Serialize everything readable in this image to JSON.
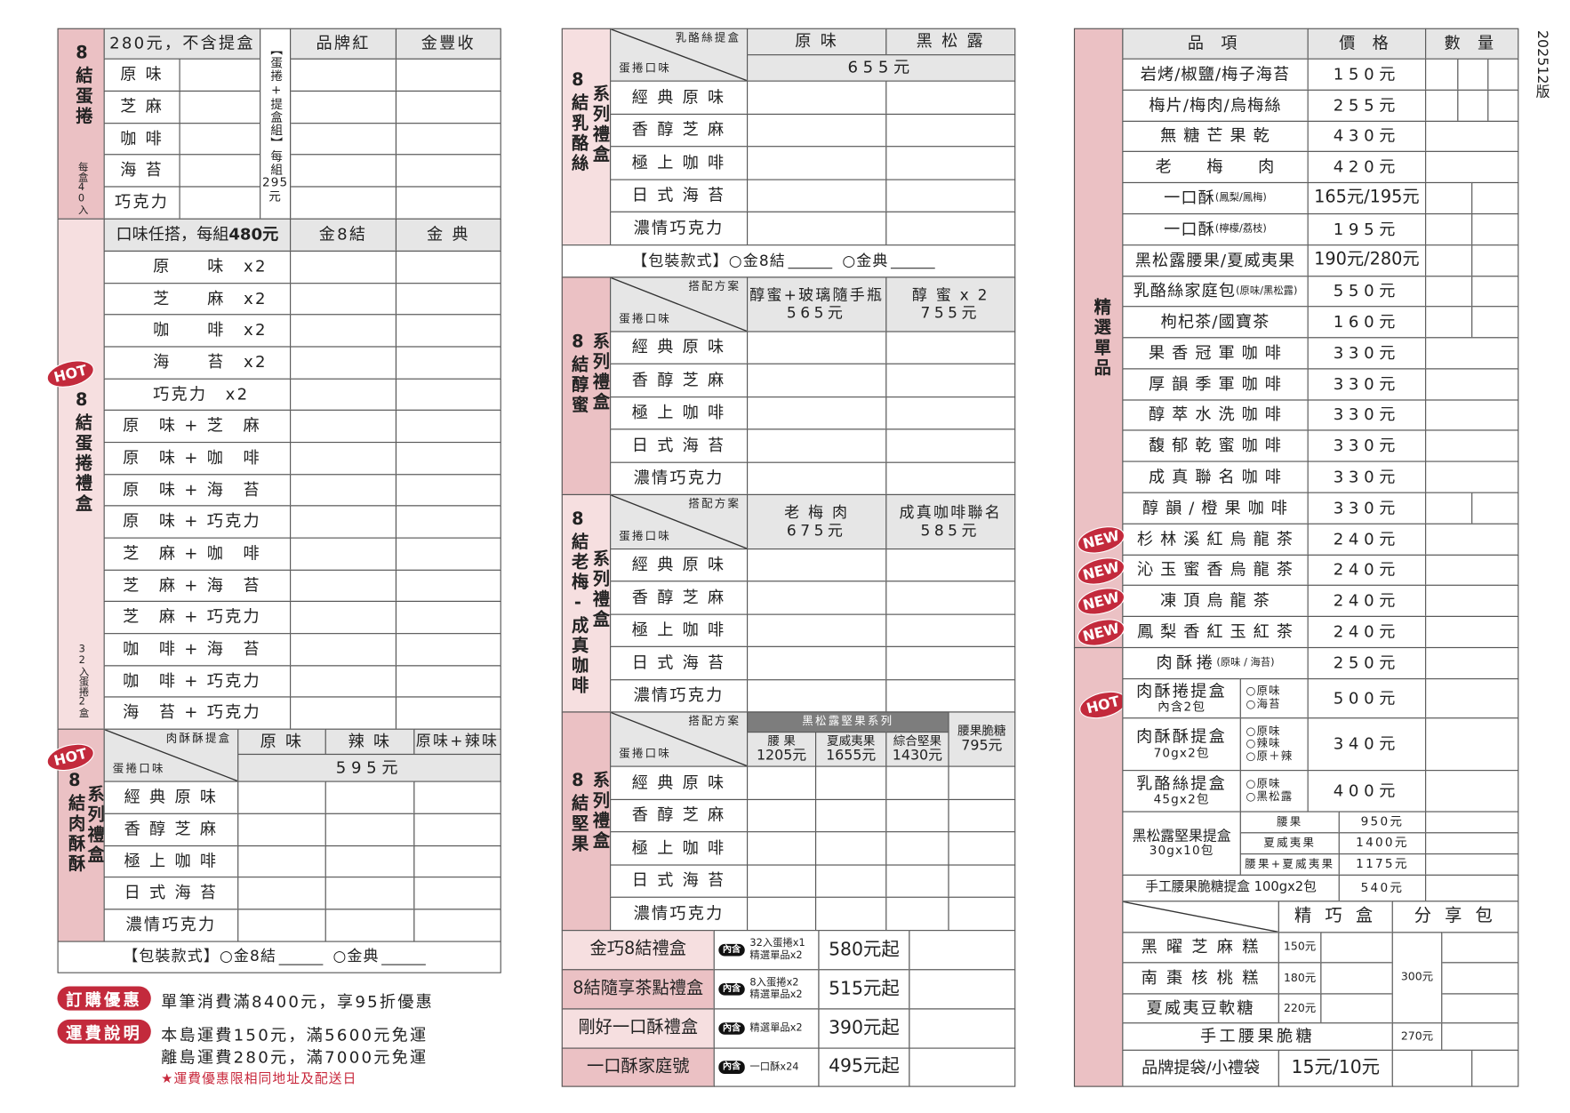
{
  "version": "202512版",
  "colors": {
    "pink_dark": "#ebc1c4",
    "pink_light": "#f6dfe0",
    "header_gray": "#e6e6e6",
    "series_gray": "#7d7d7d",
    "badge_red": "#c32a3c",
    "note_red": "#c8283c"
  },
  "gift_flavors": [
    "經 典 原 味",
    "香 醇 芝 麻",
    "極 上 咖 啡",
    "日 式 海 苔",
    "濃情巧克力"
  ],
  "eggroll": {
    "title": "8結蛋捲",
    "count": "每盒40入",
    "price_note": "280元，不含提盒",
    "flavors": [
      "原 味",
      "芝 麻",
      "咖 啡",
      "海 苔",
      "巧克力"
    ],
    "set_label": "【蛋捲+提盒組】",
    "set_price_prefix": "每組",
    "set_price": "295",
    "set_price_unit": "元",
    "columns": [
      "品牌紅",
      "金豐收"
    ]
  },
  "eggroll_gift": {
    "badge": "HOT",
    "title": "8結蛋捲禮盒",
    "count": "32入蛋捲2盒",
    "header_prefix": "口味任搭，每組",
    "header_price": "480元",
    "columns": [
      "金8結",
      "金 典"
    ],
    "combos": [
      "原　　味　x2",
      "芝　　麻　x2",
      "咖　　啡　x2",
      "海　　苔　x2",
      "巧克力　x2",
      "原　味 + 芝　麻",
      "原　味 + 咖　啡",
      "原　味 + 海　苔",
      "原　味 + 巧克力",
      "芝　麻 + 咖　啡",
      "芝　麻 + 海　苔",
      "芝　麻 + 巧克力",
      "咖　啡 + 海　苔",
      "咖　啡 + 巧克力",
      "海　苔 + 巧克力"
    ]
  },
  "meat_gift": {
    "badge": "HOT",
    "title": "8結肉酥酥",
    "series": "系列禮盒",
    "corner_top": "肉酥酥提盒",
    "corner_bottom": "蛋捲口味",
    "columns": [
      "原 味",
      "辣 味",
      "原味+辣味"
    ],
    "price": "595元"
  },
  "packaging": {
    "label": "【包裝款式】",
    "option_1": "○金8結",
    "option_2": "○金典"
  },
  "promos": {
    "discount_tag": "訂購優惠",
    "discount_text": "單筆消費滿8400元，享95折優惠",
    "shipping_tag": "運費說明",
    "shipping_lines": [
      "本島運費150元，滿5600元免運",
      "離島運費280元，滿7000元免運"
    ],
    "note": "★運費優惠限相同地址及配送日"
  },
  "cheese_gift": {
    "title": "8結乳酪絲",
    "series": "系列禮盒",
    "corner_top": "乳酪絲提盒",
    "corner_bottom": "蛋捲口味",
    "columns": [
      "原 味",
      "黑 松 露"
    ],
    "price": "655元"
  },
  "honey_gift": {
    "title": "8結醇蜜",
    "series": "系列禮盒",
    "corner_top": "搭配方案",
    "corner_bottom": "蛋捲口味",
    "columns": [
      {
        "name": "醇蜜+玻璃隨手瓶",
        "price": "565元"
      },
      {
        "name": "醇 蜜 x 2",
        "price": "755元"
      }
    ]
  },
  "plum_gift": {
    "title": "8結老梅-成真咖啡",
    "series": "系列禮盒",
    "corner_top": "搭配方案",
    "corner_bottom": "蛋捲口味",
    "columns": [
      {
        "name": "老 梅 肉",
        "price": "675元"
      },
      {
        "name": "成真咖啡聯名",
        "price": "585元"
      }
    ]
  },
  "nut_gift": {
    "title": "8結堅果",
    "series": "系列禮盒",
    "corner_top": "搭配方案",
    "corner_bottom": "蛋捲口味",
    "series_band": "黑松露堅果系列",
    "columns": [
      {
        "name": "腰 果",
        "price": "1205元"
      },
      {
        "name": "夏威夷果",
        "price": "1655元"
      },
      {
        "name": "綜合堅果",
        "price": "1430元"
      },
      {
        "name": "腰果脆糖",
        "price": "795元"
      }
    ]
  },
  "bundles": [
    {
      "name": "金巧8結禮盒",
      "tag": "內含",
      "contents": [
        "32入蛋捲x1",
        "精選單品x2"
      ],
      "price": "580元起"
    },
    {
      "name": "8結隨享茶點禮盒",
      "tag": "內含",
      "contents": [
        "8入蛋捲x2",
        "精選單品x2"
      ],
      "price": "515元起"
    },
    {
      "name": "剛好一口酥禮盒",
      "tag": "內含",
      "contents": [
        "精選單品x2"
      ],
      "price": "390元起"
    },
    {
      "name": "一口酥家庭號",
      "tag": "內含",
      "contents": [
        "一口酥x24"
      ],
      "price": "495元起"
    }
  ],
  "singles": {
    "title": "精選單品",
    "headers": [
      "品 項",
      "價 格",
      "數 量"
    ],
    "items": [
      {
        "name": "岩烤/椒鹽/梅子海苔",
        "price": "150元"
      },
      {
        "name": "梅片/梅肉/烏梅絲",
        "price": "255元"
      },
      {
        "name": "無 糖 芒 果 乾",
        "price": "430元"
      },
      {
        "name": "老　　梅　　肉",
        "price": "420元"
      },
      {
        "name": "一口酥",
        "note": "(鳳梨/鳳梅)",
        "price": "165元/195元"
      },
      {
        "name": "一口酥",
        "note": "(檸檬/荔枝)",
        "price": "195元"
      },
      {
        "name": "黑松露腰果/夏威夷果",
        "price": "190元/280元"
      },
      {
        "name": "乳酪絲家庭包",
        "note": "(原味/黑松露)",
        "price": "550元"
      },
      {
        "name": "枸杞茶/國寶茶",
        "price": "160元"
      },
      {
        "name": "果 香 冠 軍 咖 啡",
        "price": "330元"
      },
      {
        "name": "厚 韻 季 軍 咖 啡",
        "price": "330元"
      },
      {
        "name": "醇 萃 水 洗 咖 啡",
        "price": "330元"
      },
      {
        "name": "馥 郁 乾 蜜 咖 啡",
        "price": "330元"
      },
      {
        "name": "成 真 聯 名 咖 啡",
        "price": "330元"
      },
      {
        "name": "醇 韻 / 橙 果 咖 啡",
        "price": "330元"
      },
      {
        "name": "杉 林 溪 紅 烏 龍 茶",
        "price": "240元",
        "badge": "NEW"
      },
      {
        "name": "沁 玉 蜜 香 烏 龍 茶",
        "price": "240元",
        "badge": "NEW"
      },
      {
        "name": "凍 頂 烏 龍 茶",
        "price": "240元",
        "badge": "NEW"
      },
      {
        "name": "鳳 梨 香 紅 玉 紅 茶",
        "price": "240元",
        "badge": "NEW"
      }
    ]
  },
  "meat_roll": {
    "badge": "HOT",
    "name": "肉酥捲",
    "note": "(原味 / 海苔)",
    "price": "250元"
  },
  "boxes": [
    {
      "name": "肉酥捲提盒",
      "sub": "內含2包",
      "options": [
        "○原味",
        "○海苔"
      ],
      "price": "500元"
    },
    {
      "name": "肉酥酥提盒",
      "sub": "70gx2包",
      "options": [
        "○原味",
        "○辣味",
        "○原＋辣"
      ],
      "price": "340元"
    },
    {
      "name": "乳酪絲提盒",
      "sub": "45gx2包",
      "options": [
        "○原味",
        "○黑松露"
      ],
      "price": "400元"
    }
  ],
  "nut_box": {
    "name": "黑松露堅果提盒",
    "sub": "30gx10包",
    "variants": [
      {
        "name": "腰果",
        "price": "950元"
      },
      {
        "name": "夏威夷果",
        "price": "1400元"
      },
      {
        "name": "腰果+夏威夷果",
        "price": "1175元"
      }
    ]
  },
  "brittle_box": {
    "name": "手工腰果脆糖提盒 100gx2包",
    "price": "540元"
  },
  "cakes": {
    "columns": [
      "精 巧 盒",
      "分 享 包"
    ],
    "items": [
      {
        "name": "黑 曜 芝 麻 糕",
        "price": "150元"
      },
      {
        "name": "南 棗 核 桃 糕",
        "price": "180元"
      },
      {
        "name": "夏威夷豆軟糖",
        "price": "220元"
      }
    ],
    "share_price": "300元",
    "brittle": {
      "name": "手工腰果脆糖",
      "price": "270元"
    }
  },
  "bags": {
    "name": "品牌提袋/小禮袋",
    "price": "15元/10元"
  }
}
